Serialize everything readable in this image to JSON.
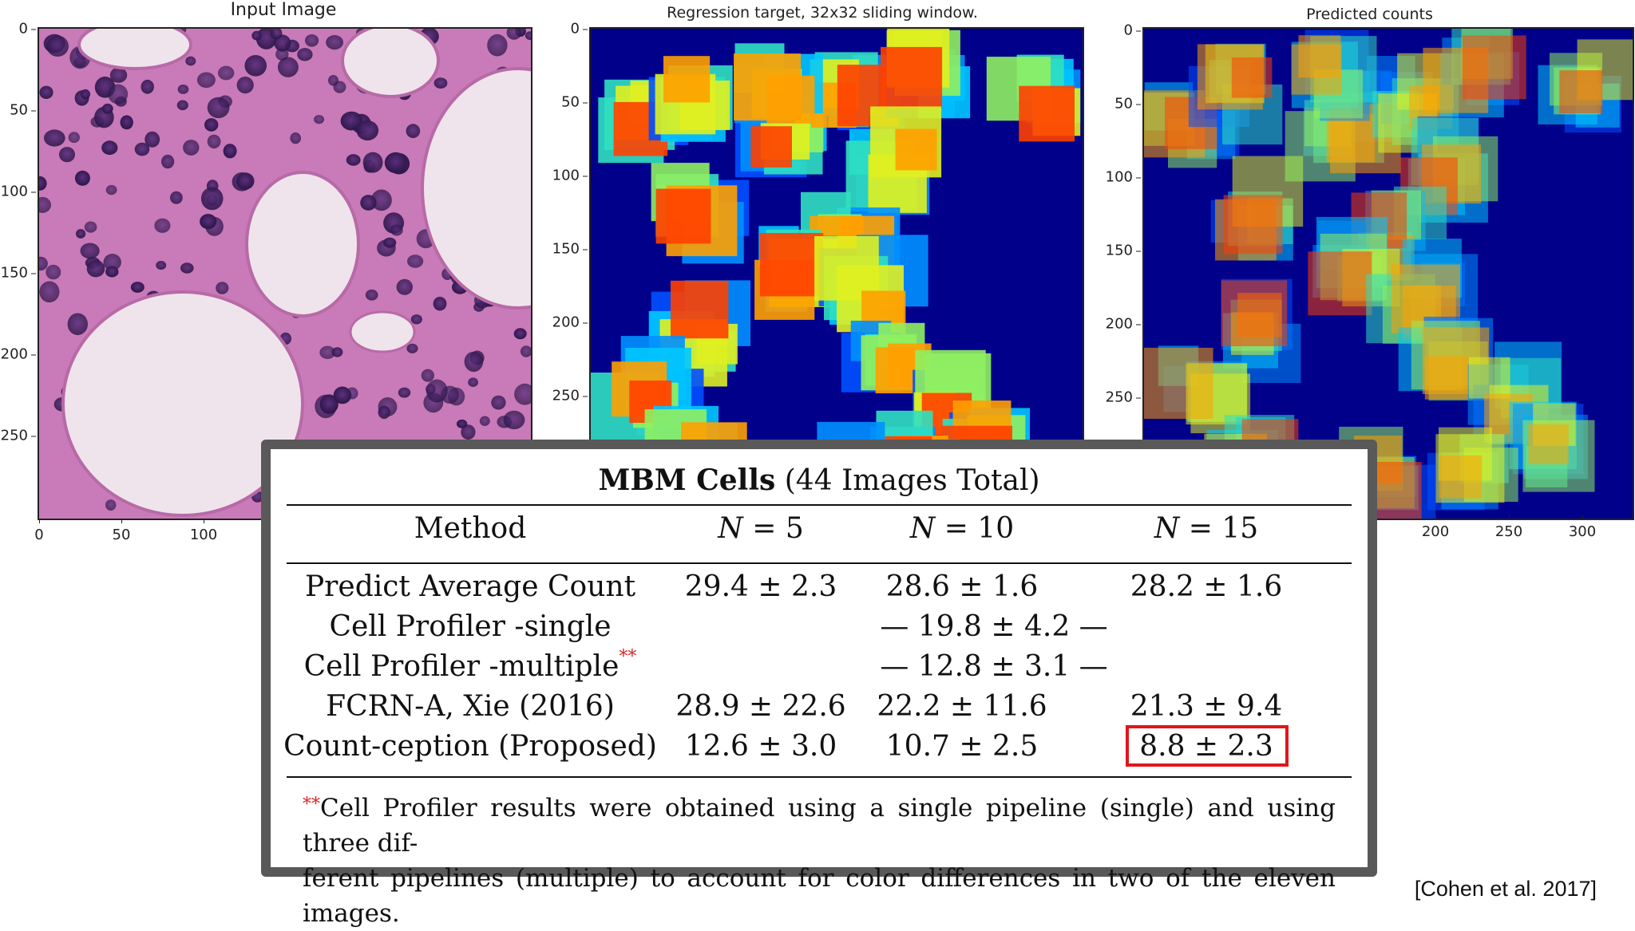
{
  "panels": [
    {
      "title": "Input Image",
      "y_ticks": [
        "0",
        "50",
        "100",
        "150",
        "200",
        "250"
      ],
      "x_ticks": [
        "0",
        "50",
        "100"
      ],
      "image_kind": "H&E stained tissue micrograph"
    },
    {
      "title": "Regression target, 32x32 sliding window.",
      "y_ticks": [
        "0",
        "50",
        "100",
        "150",
        "200",
        "250"
      ],
      "x_ticks": [],
      "colormap": "jet"
    },
    {
      "title": "Predicted counts",
      "y_ticks": [
        "0",
        "50",
        "100",
        "150",
        "200",
        "250"
      ],
      "x_ticks": [
        "200",
        "250",
        "300"
      ],
      "colormap": "jet"
    }
  ],
  "table": {
    "title_bold": "MBM Cells",
    "title_rest": "(44 Images Total)",
    "headers": [
      "Method",
      "N = 5",
      "N = 10",
      "N = 15"
    ],
    "header_n": [
      "N",
      "N",
      "N"
    ],
    "header_eq": [
      "= 5",
      "= 10",
      "= 15"
    ],
    "rows": [
      {
        "method": "Predict Average Count",
        "n5": "29.4 ± 2.3",
        "n10": "28.6 ± 1.6",
        "n15": "28.2 ± 1.6"
      },
      {
        "method": "Cell Profiler -single",
        "n5": "",
        "n10": "— 19.8 ± 4.2 —",
        "n15": ""
      },
      {
        "method": "Cell Profiler -multiple",
        "n5": "",
        "n10": "— 12.8 ± 3.1 —",
        "n15": ""
      },
      {
        "method": "FCRN-A, Xie (2016)",
        "n5": "28.9 ± 22.6",
        "n10": "22.2 ± 11.6",
        "n15": "21.3 ± 9.4"
      },
      {
        "method": "Count-ception (Proposed)",
        "n5": "12.6 ± 3.0",
        "n10": "10.7 ± 2.5",
        "n15": "8.8 ± 2.3"
      }
    ],
    "footnote_mark": "**",
    "footnote_line1": "Cell Profiler results were obtained using a single pipeline (single) and using three dif-",
    "footnote_line2": "ferent pipelines (multiple) to account for color differences in two of the eleven images.",
    "highlight_color": "#e0161c"
  },
  "citation": "[Cohen et al. 2017]"
}
